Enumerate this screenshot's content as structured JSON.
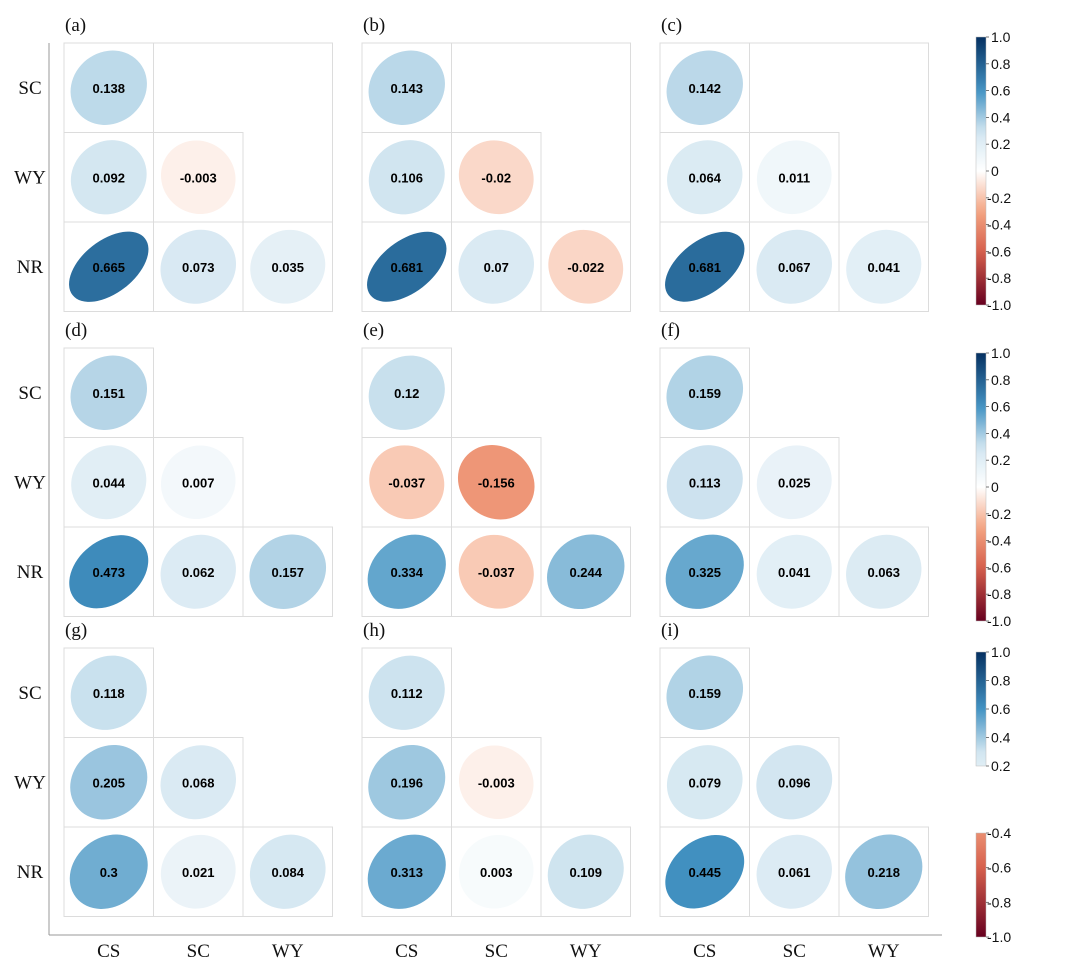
{
  "chart_data": {
    "type": "correlation-matrix",
    "row_labels": [
      "SC",
      "WY",
      "NR"
    ],
    "col_labels": [
      "CS",
      "SC",
      "WY"
    ],
    "panels": [
      {
        "label": "(a)",
        "values": [
          [
            0.138
          ],
          [
            0.092,
            -0.003
          ],
          [
            0.665,
            0.073,
            0.035
          ]
        ]
      },
      {
        "label": "(b)",
        "values": [
          [
            0.143
          ],
          [
            0.106,
            -0.02
          ],
          [
            0.681,
            0.07,
            -0.022
          ]
        ]
      },
      {
        "label": "(c)",
        "values": [
          [
            0.142
          ],
          [
            0.064,
            0.011
          ],
          [
            0.681,
            0.067,
            0.041
          ]
        ]
      },
      {
        "label": "(d)",
        "values": [
          [
            0.151
          ],
          [
            0.044,
            0.007
          ],
          [
            0.473,
            0.062,
            0.157
          ]
        ]
      },
      {
        "label": "(e)",
        "values": [
          [
            0.12
          ],
          [
            -0.037,
            -0.156
          ],
          [
            0.334,
            -0.037,
            0.244
          ]
        ]
      },
      {
        "label": "(f)",
        "values": [
          [
            0.159
          ],
          [
            0.113,
            0.025
          ],
          [
            0.325,
            0.041,
            0.063
          ]
        ]
      },
      {
        "label": "(g)",
        "values": [
          [
            0.118
          ],
          [
            0.205,
            0.068
          ],
          [
            0.3,
            0.021,
            0.084
          ]
        ]
      },
      {
        "label": "(h)",
        "values": [
          [
            0.112
          ],
          [
            0.196,
            -0.003
          ],
          [
            0.313,
            0.003,
            0.109
          ]
        ]
      },
      {
        "label": "(i)",
        "values": [
          [
            0.159
          ],
          [
            0.079,
            0.096
          ],
          [
            0.445,
            0.061,
            0.218
          ]
        ]
      }
    ],
    "colorbars": [
      {
        "range": [
          -1.0,
          1.0
        ],
        "ticks": [
          "1.0",
          "0.8",
          "0.6",
          "0.4",
          "0.2",
          "0",
          "-0.2",
          "-0.4",
          "-0.6",
          "-0.8",
          "-1.0"
        ],
        "tick_values": [
          1.0,
          0.8,
          0.6,
          0.4,
          0.2,
          0,
          -0.2,
          -0.4,
          -0.6,
          -0.8,
          -1.0
        ]
      },
      {
        "range": [
          -1.0,
          1.0
        ],
        "ticks": [
          "1.0",
          "0.8",
          "0.6",
          "0.4",
          "0.2",
          "0",
          "-0.2",
          "-0.4",
          "-0.6",
          "-0.8",
          "-1.0"
        ],
        "tick_values": [
          1.0,
          0.8,
          0.6,
          0.4,
          0.2,
          0,
          -0.2,
          -0.4,
          -0.6,
          -0.8,
          -1.0
        ]
      },
      {
        "range": [
          0.2,
          1.0
        ],
        "ticks": [
          "1.0",
          "0.8",
          "0.6",
          "0.4",
          "0.2"
        ],
        "tick_values": [
          1.0,
          0.8,
          0.6,
          0.4,
          0.2
        ]
      },
      {
        "range": [
          -1.0,
          -0.4
        ],
        "ticks": [
          "-0.4",
          "-0.6",
          "-0.8",
          "-1.0"
        ],
        "tick_values": [
          -0.4,
          -0.6,
          -0.8,
          -1.0
        ]
      }
    ],
    "colors": {
      "neg_end": "#67001f",
      "neg_mid": "#d6604d",
      "neg_light": "#f4a582",
      "neutral": "#ffffff",
      "pos_light": "#d1e5f0",
      "pos_mid": "#4393c3",
      "pos_end": "#053061"
    }
  }
}
